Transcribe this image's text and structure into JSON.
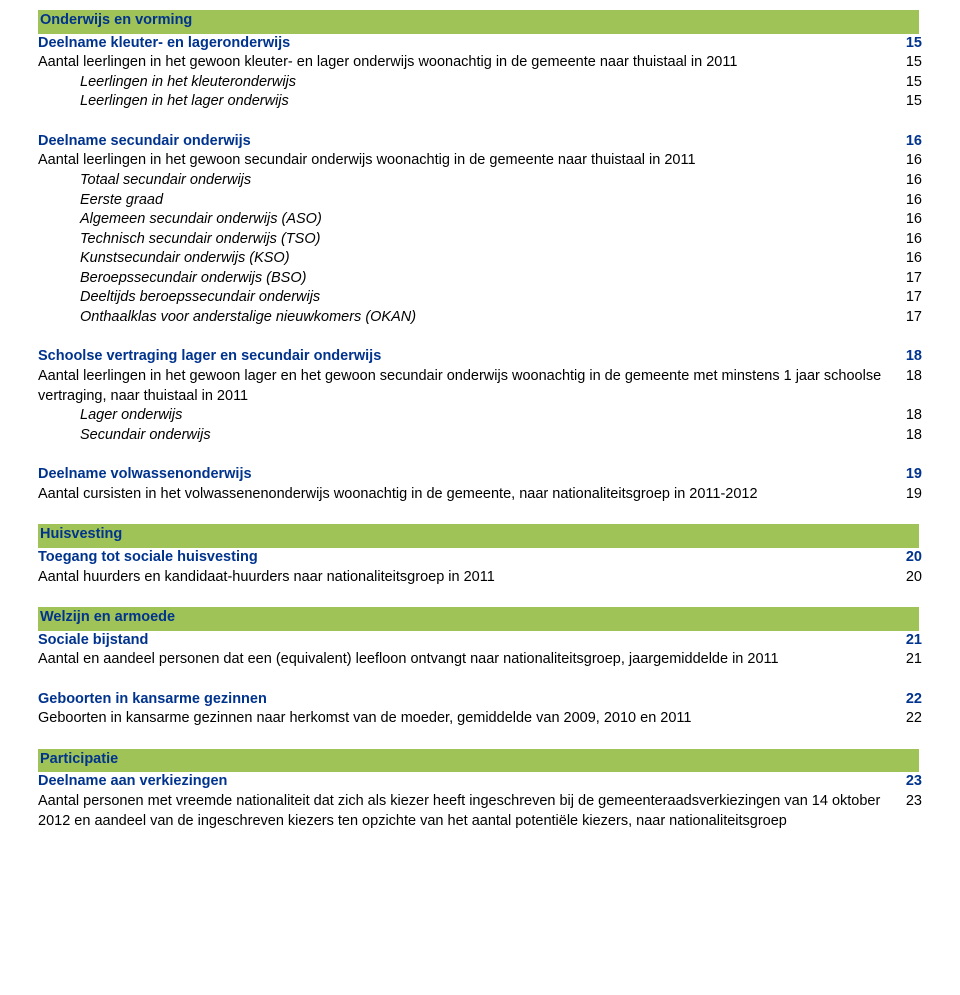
{
  "colors": {
    "bar_bg": "#a0c358",
    "heading_text": "#00338d",
    "body_text": "#000000",
    "page_bg": "#ffffff"
  },
  "typography": {
    "font_family": "Verdana, Geneva, sans-serif",
    "base_size_pt": 11
  },
  "sections": {
    "s1": {
      "bar": "Onderwijs en vorming",
      "group1": {
        "head": {
          "label": "Deelname kleuter- en lageronderwijs",
          "page": "15"
        },
        "r1": {
          "label": "Aantal leerlingen in het gewoon kleuter- en lager onderwijs woonachtig in de gemeente naar thuistaal in 2011",
          "page": "15"
        },
        "r2": {
          "label": "Leerlingen in het kleuteronderwijs",
          "page": "15"
        },
        "r3": {
          "label": "Leerlingen in het lager onderwijs",
          "page": "15"
        }
      },
      "group2": {
        "head": {
          "label": "Deelname secundair onderwijs",
          "page": "16"
        },
        "r1": {
          "label": "Aantal leerlingen in het gewoon secundair onderwijs woonachtig in de gemeente naar thuistaal in 2011",
          "page": "16"
        },
        "r2": {
          "label": "Totaal secundair onderwijs",
          "page": "16"
        },
        "r3": {
          "label": "Eerste graad",
          "page": "16"
        },
        "r4": {
          "label": "Algemeen secundair onderwijs (ASO)",
          "page": "16"
        },
        "r5": {
          "label": "Technisch secundair onderwijs (TSO)",
          "page": "16"
        },
        "r6": {
          "label": "Kunstsecundair onderwijs (KSO)",
          "page": "16"
        },
        "r7": {
          "label": "Beroepssecundair onderwijs (BSO)",
          "page": "17"
        },
        "r8": {
          "label": "Deeltijds beroepssecundair onderwijs",
          "page": "17"
        },
        "r9": {
          "label": "Onthaalklas voor anderstalige nieuwkomers (OKAN)",
          "page": "17"
        }
      },
      "group3": {
        "head": {
          "label": "Schoolse vertraging lager en secundair onderwijs",
          "page": "18"
        },
        "r1": {
          "label": "Aantal leerlingen in het gewoon lager en het gewoon secundair onderwijs woonachtig in de gemeente met minstens 1 jaar schoolse vertraging, naar thuistaal in 2011",
          "page": "18"
        },
        "r2": {
          "label": "Lager onderwijs",
          "page": "18"
        },
        "r3": {
          "label": "Secundair onderwijs",
          "page": "18"
        }
      },
      "group4": {
        "head": {
          "label": "Deelname volwassenonderwijs",
          "page": "19"
        },
        "r1": {
          "label": "Aantal cursisten in het volwassenenonderwijs woonachtig in de gemeente, naar nationaliteitsgroep in 2011-2012",
          "page": "19"
        }
      }
    },
    "s2": {
      "bar": "Huisvesting",
      "group1": {
        "head": {
          "label": "Toegang tot sociale huisvesting",
          "page": "20"
        },
        "r1": {
          "label": "Aantal huurders en kandidaat-huurders naar nationaliteitsgroep in 2011",
          "page": "20"
        }
      }
    },
    "s3": {
      "bar": "Welzijn en armoede",
      "group1": {
        "head": {
          "label": "Sociale bijstand",
          "page": "21"
        },
        "r1": {
          "label": "Aantal en aandeel personen dat een (equivalent) leefloon ontvangt naar nationaliteitsgroep, jaargemiddelde in 2011",
          "page": "21"
        }
      },
      "group2": {
        "head": {
          "label": "Geboorten in kansarme gezinnen",
          "page": "22"
        },
        "r1": {
          "label": "Geboorten in kansarme gezinnen naar herkomst van de moeder, gemiddelde van 2009, 2010 en 2011",
          "page": "22"
        }
      }
    },
    "s4": {
      "bar": "Participatie",
      "group1": {
        "head": {
          "label": "Deelname aan verkiezingen",
          "page": "23"
        },
        "r1": {
          "label": "Aantal personen met vreemde nationaliteit dat zich als kiezer heeft ingeschreven bij de gemeenteraadsverkiezingen van 14 oktober 2012 en aandeel van de ingeschreven kiezers ten opzichte van het aantal potentiële kiezers, naar nationaliteitsgroep",
          "page": "23"
        }
      }
    }
  }
}
